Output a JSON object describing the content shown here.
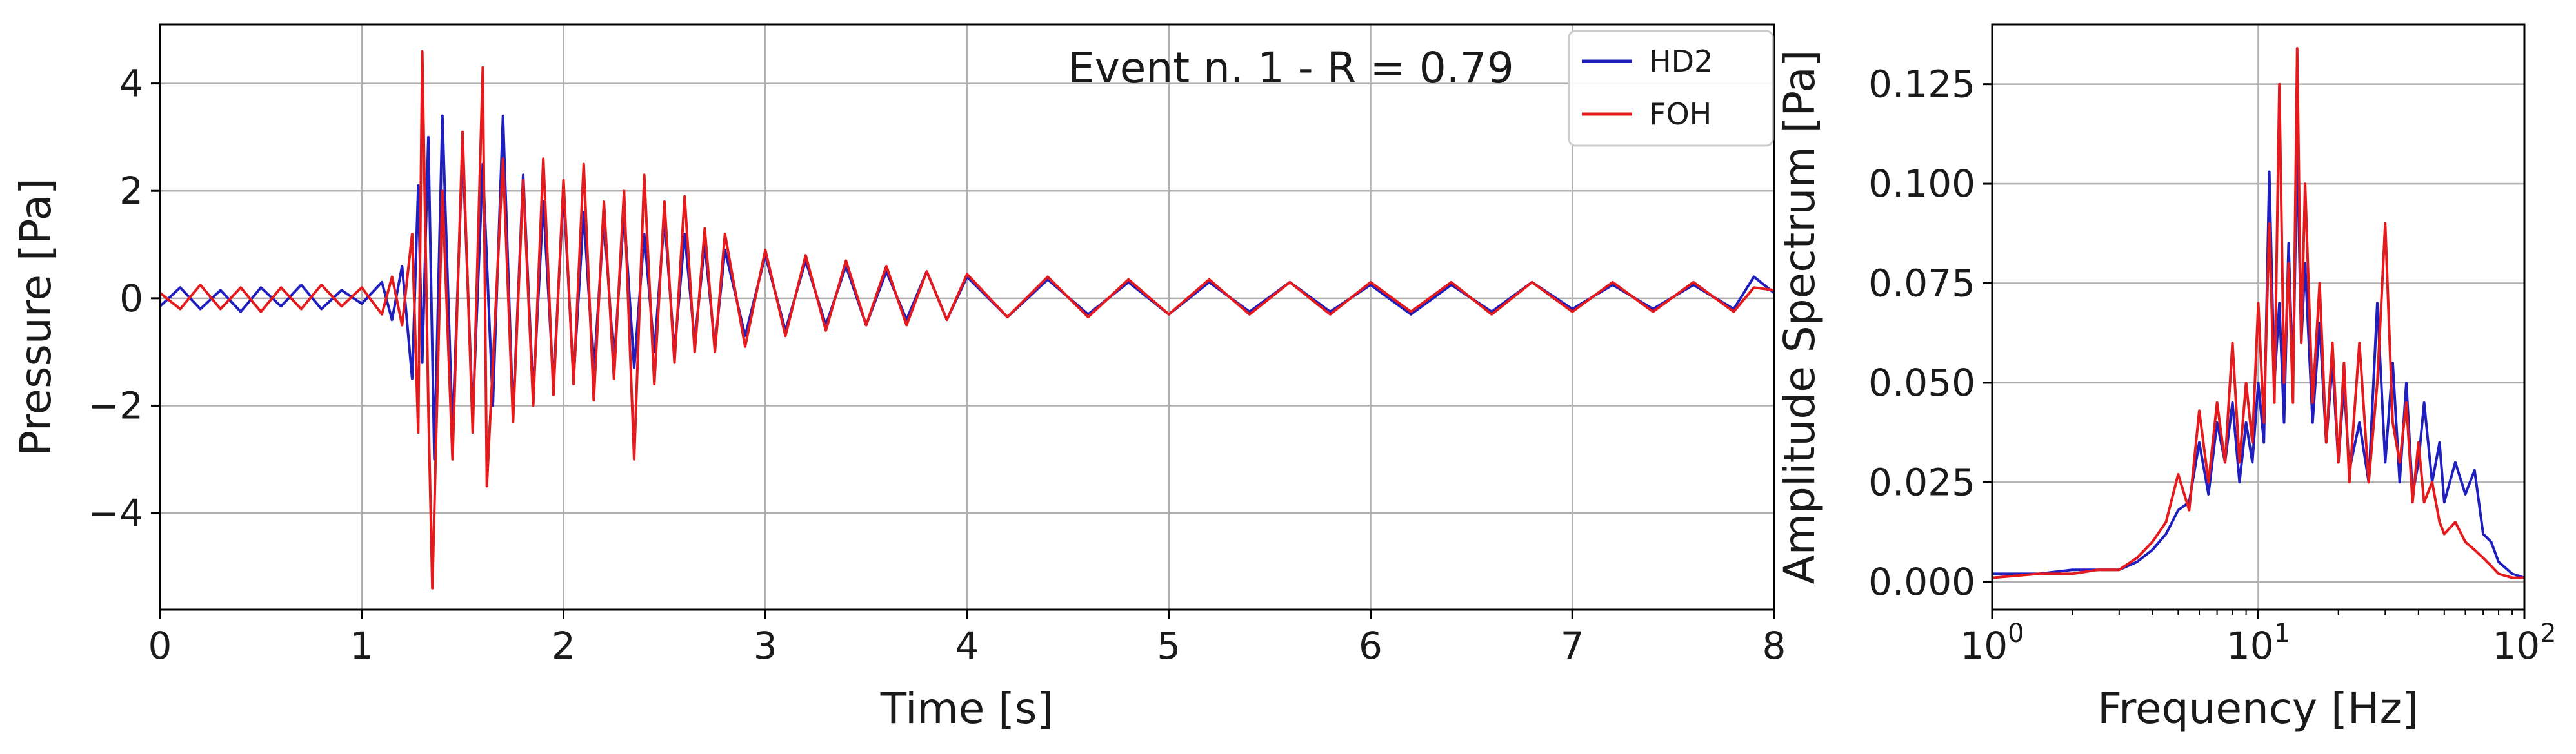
{
  "chart_data": [
    {
      "type": "line",
      "xlabel": "Time [s]",
      "ylabel": "Pressure [Pa]",
      "xlim": [
        0,
        8
      ],
      "ylim": [
        -5.8,
        5.1
      ],
      "x_ticks": [
        0,
        1,
        2,
        3,
        4,
        5,
        6,
        7,
        8
      ],
      "x_tick_labels": [
        "0",
        "1",
        "2",
        "3",
        "4",
        "5",
        "6",
        "7",
        "8"
      ],
      "y_ticks": [
        -4,
        -2,
        0,
        2,
        4
      ],
      "y_tick_labels": [
        "−4",
        "−2",
        "0",
        "2",
        "4"
      ],
      "grid": true,
      "annotation": "Event n. 1 - R = 0.79",
      "legend": {
        "placement": "top-right"
      },
      "colors": {
        "HD2": "#1f1fbf",
        "FOH": "#e41a1c"
      },
      "series": [
        {
          "name": "HD2",
          "x": [
            0,
            0.1,
            0.2,
            0.3,
            0.4,
            0.5,
            0.6,
            0.7,
            0.8,
            0.9,
            1.0,
            1.1,
            1.15,
            1.2,
            1.25,
            1.28,
            1.3,
            1.33,
            1.36,
            1.4,
            1.45,
            1.5,
            1.55,
            1.6,
            1.65,
            1.7,
            1.75,
            1.8,
            1.85,
            1.9,
            1.95,
            2.0,
            2.05,
            2.1,
            2.15,
            2.2,
            2.25,
            2.3,
            2.35,
            2.4,
            2.45,
            2.5,
            2.55,
            2.6,
            2.65,
            2.7,
            2.75,
            2.8,
            2.9,
            3.0,
            3.1,
            3.2,
            3.3,
            3.4,
            3.5,
            3.6,
            3.7,
            3.8,
            3.9,
            4.0,
            4.2,
            4.4,
            4.6,
            4.8,
            5.0,
            5.2,
            5.4,
            5.6,
            5.8,
            6.0,
            6.2,
            6.4,
            6.6,
            6.8,
            7.0,
            7.2,
            7.4,
            7.6,
            7.8,
            7.9,
            8.0
          ],
          "y": [
            -0.15,
            0.2,
            -0.2,
            0.15,
            -0.25,
            0.2,
            -0.15,
            0.25,
            -0.2,
            0.15,
            -0.1,
            0.3,
            -0.4,
            0.6,
            -1.5,
            2.1,
            -1.2,
            3.0,
            -3.0,
            3.4,
            -2.5,
            2.8,
            -2.2,
            2.5,
            -2.0,
            3.4,
            -2.2,
            2.3,
            -1.8,
            1.8,
            -1.6,
            2.0,
            -1.5,
            1.6,
            -1.4,
            1.5,
            -1.2,
            1.6,
            -1.3,
            1.2,
            -1.0,
            1.5,
            -1.0,
            1.2,
            -0.8,
            1.0,
            -0.9,
            0.9,
            -0.7,
            0.8,
            -0.6,
            0.7,
            -0.5,
            0.6,
            -0.5,
            0.5,
            -0.4,
            0.5,
            -0.4,
            0.4,
            -0.35,
            0.35,
            -0.3,
            0.3,
            -0.3,
            0.3,
            -0.25,
            0.3,
            -0.25,
            0.25,
            -0.3,
            0.25,
            -0.25,
            0.3,
            -0.2,
            0.25,
            -0.2,
            0.25,
            -0.2,
            0.4,
            0.1
          ]
        },
        {
          "name": "FOH",
          "x": [
            0,
            0.1,
            0.2,
            0.3,
            0.4,
            0.5,
            0.6,
            0.7,
            0.8,
            0.9,
            1.0,
            1.1,
            1.15,
            1.2,
            1.25,
            1.28,
            1.3,
            1.33,
            1.35,
            1.4,
            1.45,
            1.5,
            1.55,
            1.6,
            1.62,
            1.7,
            1.75,
            1.8,
            1.85,
            1.9,
            1.95,
            2.0,
            2.05,
            2.1,
            2.15,
            2.2,
            2.25,
            2.3,
            2.35,
            2.4,
            2.45,
            2.5,
            2.55,
            2.6,
            2.65,
            2.7,
            2.75,
            2.8,
            2.9,
            3.0,
            3.1,
            3.2,
            3.3,
            3.4,
            3.5,
            3.6,
            3.7,
            3.8,
            3.9,
            4.0,
            4.2,
            4.4,
            4.6,
            4.8,
            5.0,
            5.2,
            5.4,
            5.6,
            5.8,
            6.0,
            6.2,
            6.4,
            6.6,
            6.8,
            7.0,
            7.2,
            7.4,
            7.6,
            7.8,
            7.9,
            8.0
          ],
          "y": [
            0.1,
            -0.2,
            0.25,
            -0.2,
            0.2,
            -0.25,
            0.2,
            -0.2,
            0.25,
            -0.15,
            0.2,
            -0.3,
            0.4,
            -0.5,
            1.2,
            -2.5,
            4.6,
            -2.0,
            -5.4,
            2.0,
            -3.0,
            3.1,
            -2.5,
            4.3,
            -3.5,
            2.6,
            -2.3,
            2.2,
            -2.0,
            2.6,
            -1.8,
            2.2,
            -1.6,
            2.5,
            -1.9,
            1.8,
            -1.5,
            2.0,
            -3.0,
            2.3,
            -1.6,
            1.8,
            -1.2,
            1.9,
            -1.0,
            1.3,
            -1.0,
            1.2,
            -0.9,
            0.9,
            -0.7,
            0.8,
            -0.6,
            0.7,
            -0.5,
            0.6,
            -0.5,
            0.5,
            -0.4,
            0.45,
            -0.35,
            0.4,
            -0.35,
            0.35,
            -0.3,
            0.35,
            -0.3,
            0.3,
            -0.3,
            0.3,
            -0.25,
            0.3,
            -0.3,
            0.3,
            -0.25,
            0.3,
            -0.25,
            0.3,
            -0.25,
            0.2,
            0.15
          ]
        }
      ]
    },
    {
      "type": "line",
      "xlabel": "Frequency [Hz]",
      "ylabel": "Amplitude Spectrum [Pa]",
      "xscale": "log",
      "xlim": [
        1,
        100
      ],
      "ylim": [
        -0.007,
        0.14
      ],
      "x_ticks": [
        1,
        10,
        100
      ],
      "x_tick_labels": [
        {
          "base": "10",
          "exp": "0"
        },
        {
          "base": "10",
          "exp": "1"
        },
        {
          "base": "10",
          "exp": "2"
        }
      ],
      "y_ticks": [
        0,
        0.025,
        0.05,
        0.075,
        0.1,
        0.125
      ],
      "y_tick_labels": [
        "0.000",
        "0.025",
        "0.050",
        "0.075",
        "0.100",
        "0.125"
      ],
      "grid": true,
      "colors": {
        "HD2": "#1f1fbf",
        "FOH": "#e41a1c"
      },
      "series": [
        {
          "name": "HD2",
          "x": [
            1,
            1.5,
            2,
            2.5,
            3,
            3.5,
            4,
            4.5,
            5,
            5.5,
            6,
            6.5,
            7,
            7.5,
            8,
            8.5,
            9,
            9.5,
            10,
            10.5,
            11,
            11.5,
            12,
            12.5,
            13,
            13.5,
            14,
            14.5,
            15,
            16,
            17,
            18,
            19,
            20,
            21,
            22,
            24,
            26,
            28,
            30,
            32,
            34,
            36,
            38,
            40,
            42,
            45,
            48,
            50,
            55,
            60,
            65,
            70,
            75,
            80,
            90,
            100
          ],
          "y": [
            0.002,
            0.002,
            0.003,
            0.003,
            0.003,
            0.005,
            0.008,
            0.012,
            0.018,
            0.02,
            0.035,
            0.022,
            0.04,
            0.03,
            0.045,
            0.025,
            0.04,
            0.03,
            0.05,
            0.035,
            0.103,
            0.05,
            0.07,
            0.04,
            0.085,
            0.05,
            0.11,
            0.06,
            0.08,
            0.04,
            0.065,
            0.035,
            0.055,
            0.03,
            0.05,
            0.028,
            0.04,
            0.025,
            0.07,
            0.03,
            0.055,
            0.025,
            0.05,
            0.022,
            0.03,
            0.045,
            0.025,
            0.035,
            0.02,
            0.03,
            0.022,
            0.028,
            0.012,
            0.01,
            0.005,
            0.002,
            0.001
          ]
        },
        {
          "name": "FOH",
          "x": [
            1,
            1.5,
            2,
            2.5,
            3,
            3.5,
            4,
            4.5,
            5,
            5.5,
            6,
            6.5,
            7,
            7.5,
            8,
            8.5,
            9,
            9.5,
            10,
            10.5,
            11,
            11.5,
            12,
            12.5,
            13,
            13.5,
            14,
            14.5,
            15,
            16,
            17,
            18,
            19,
            20,
            21,
            22,
            24,
            26,
            28,
            30,
            32,
            34,
            36,
            38,
            40,
            42,
            45,
            48,
            50,
            55,
            60,
            65,
            70,
            75,
            80,
            90,
            100
          ],
          "y": [
            0.001,
            0.002,
            0.002,
            0.003,
            0.003,
            0.006,
            0.01,
            0.015,
            0.027,
            0.018,
            0.043,
            0.025,
            0.045,
            0.03,
            0.06,
            0.03,
            0.05,
            0.035,
            0.07,
            0.04,
            0.09,
            0.045,
            0.125,
            0.05,
            0.08,
            0.045,
            0.134,
            0.06,
            0.1,
            0.045,
            0.075,
            0.035,
            0.06,
            0.03,
            0.055,
            0.025,
            0.06,
            0.025,
            0.05,
            0.09,
            0.04,
            0.03,
            0.045,
            0.02,
            0.035,
            0.02,
            0.025,
            0.015,
            0.012,
            0.015,
            0.01,
            0.008,
            0.006,
            0.004,
            0.002,
            0.001,
            0.001
          ]
        }
      ]
    }
  ]
}
